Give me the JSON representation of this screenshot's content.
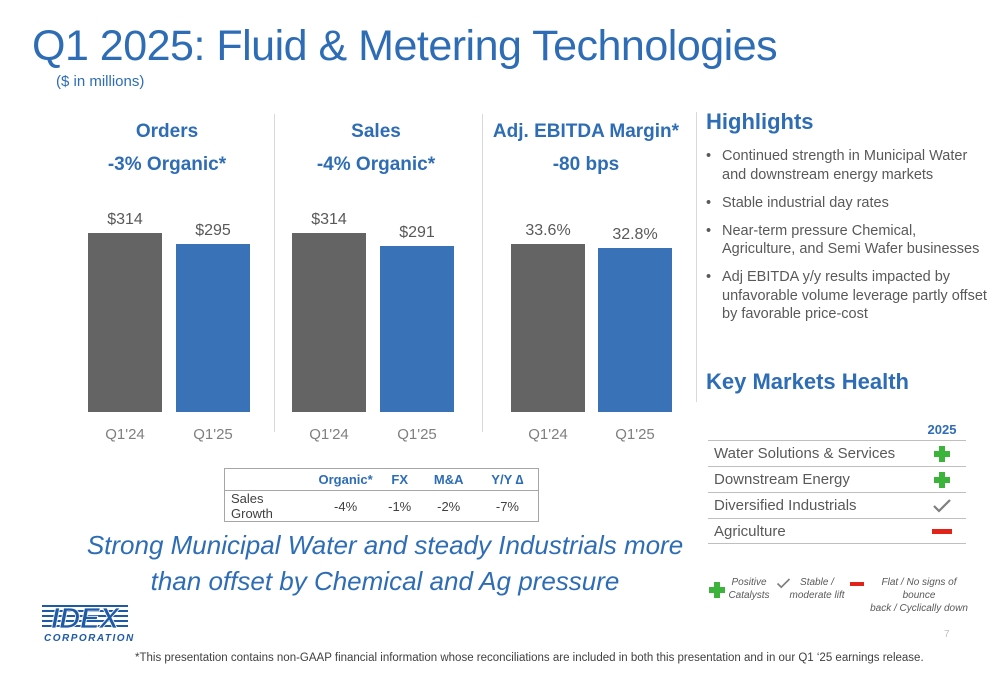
{
  "slide": {
    "title": "Q1 2025: Fluid & Metering Technologies",
    "subtitle": "($ in millions)",
    "page_number": "7",
    "footnote": "*This presentation contains non-GAAP financial information whose reconciliations are included in both this presentation and in our Q1 ‘25 earnings release.",
    "tagline_line1": "Strong Municipal Water and steady Industrials more",
    "tagline_line2": "than offset by Chemical and Ag pressure",
    "logo_text": "IDEX",
    "logo_sub": "CORPORATION"
  },
  "colors": {
    "accent": "#2e6db5",
    "bar_prior": "#636463",
    "bar_current": "#3a72b8",
    "positive": "#3cb43c",
    "negative": "#e2231a",
    "neutral": "#7f7f7f"
  },
  "chart_data": [
    {
      "type": "bar",
      "title": "Orders",
      "subtitle": "-3% Organic*",
      "categories": [
        "Q1'24",
        "Q1'25"
      ],
      "values": [
        314,
        295
      ],
      "labels": [
        "$314",
        "$295"
      ]
    },
    {
      "type": "bar",
      "title": "Sales",
      "subtitle": "-4% Organic*",
      "categories": [
        "Q1'24",
        "Q1'25"
      ],
      "values": [
        314,
        291
      ],
      "labels": [
        "$314",
        "$291"
      ]
    },
    {
      "type": "bar",
      "title": "Adj. EBITDA Margin*",
      "subtitle": "-80 bps",
      "categories": [
        "Q1'24",
        "Q1'25"
      ],
      "values": [
        33.6,
        32.8
      ],
      "labels": [
        "33.6%",
        "32.8%"
      ]
    }
  ],
  "growth_table": {
    "headers": [
      "",
      "Organic*",
      "FX",
      "M&A",
      "Y/Y ∆"
    ],
    "row": [
      "Sales Growth",
      "-4%",
      "-1%",
      "-2%",
      "-7%"
    ]
  },
  "highlights": {
    "title": "Highlights",
    "items": [
      "Continued strength in Municipal Water and downstream energy markets",
      "Stable industrial day rates",
      "Near-term pressure Chemical, Agriculture, and Semi Wafer businesses",
      "Adj EBITDA y/y results impacted by unfavorable volume leverage partly offset by favorable price-cost"
    ]
  },
  "key_markets": {
    "title": "Key Markets Health",
    "year": "2025",
    "rows": [
      {
        "name": "Water Solutions & Services",
        "status": "plus-icon"
      },
      {
        "name": "Downstream Energy",
        "status": "plus-icon"
      },
      {
        "name": "Diversified Industrials",
        "status": "check-icon"
      },
      {
        "name": "Agriculture",
        "status": "minus-icon"
      }
    ],
    "legend": {
      "positive_line1": "Positive",
      "positive_line2": "Catalysts",
      "stable_line1": "Stable /",
      "stable_line2": "moderate lift",
      "flat_line1": "Flat / No signs of bounce",
      "flat_line2": "back / Cyclically down"
    }
  }
}
